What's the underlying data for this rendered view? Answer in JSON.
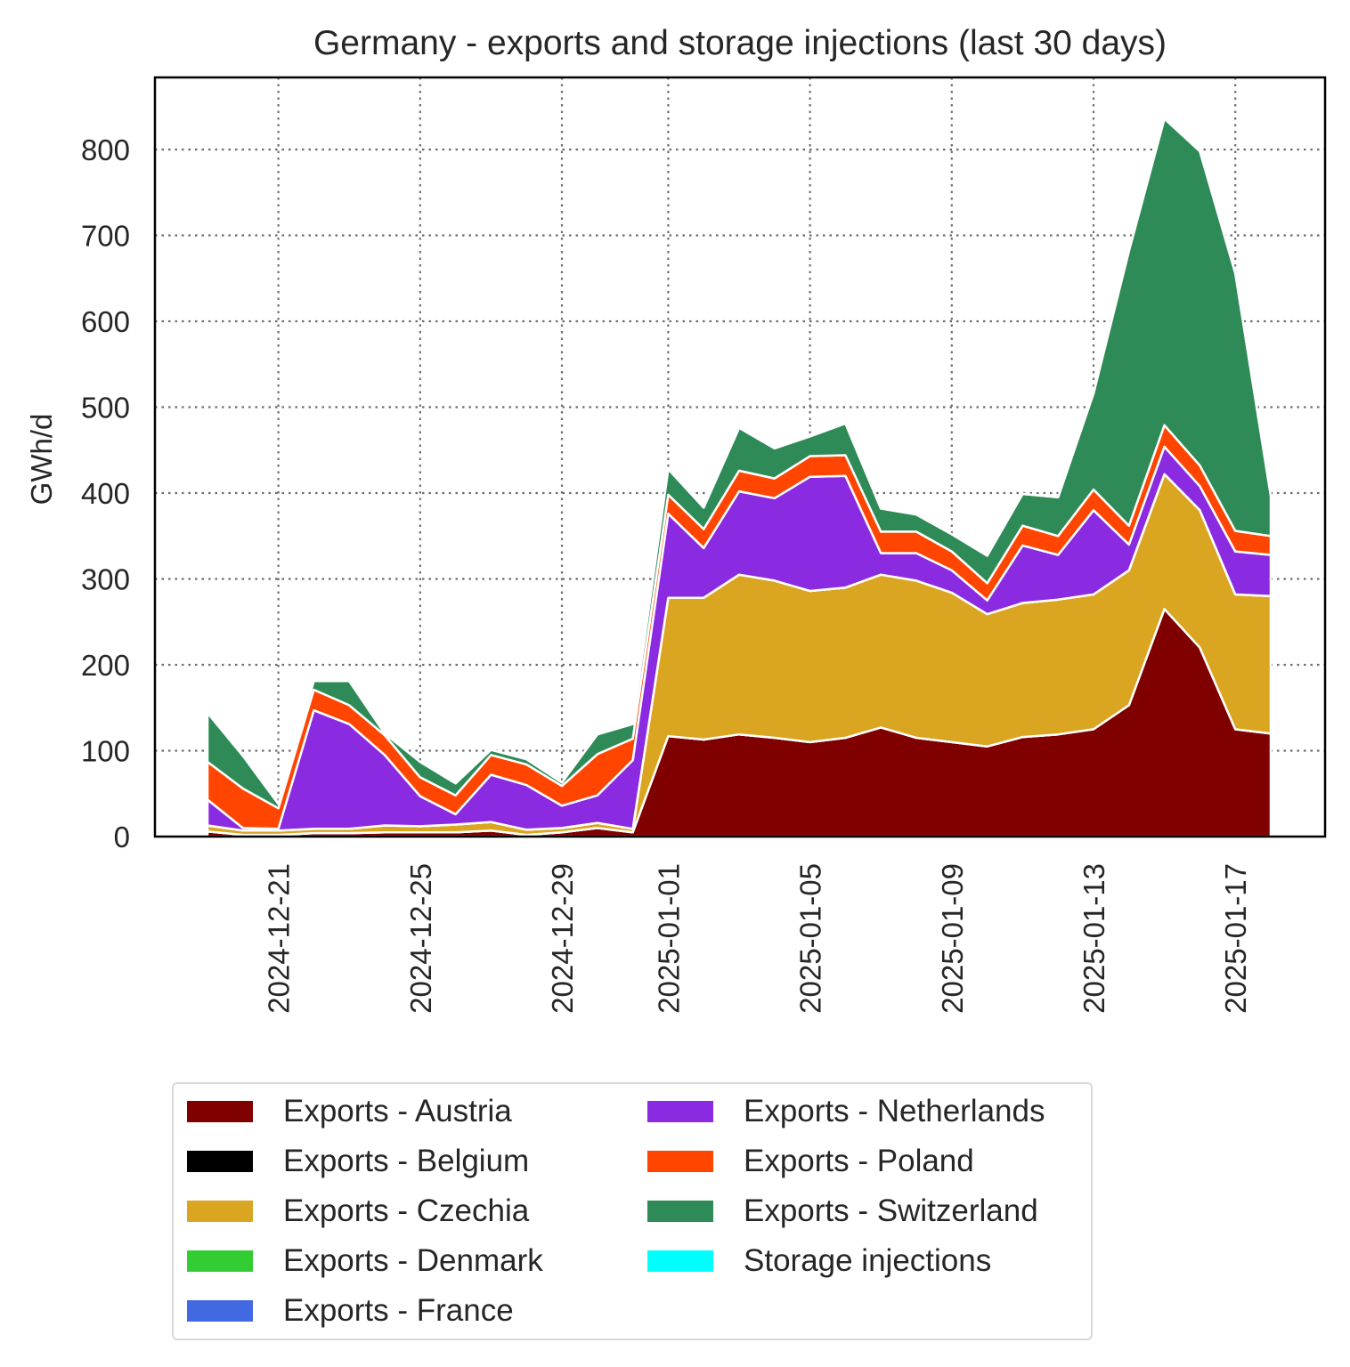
{
  "chart_data": {
    "type": "area",
    "stacked": true,
    "title": "Germany - exports and storage injections (last 30 days)",
    "xlabel": "",
    "ylabel": "GWh/d",
    "ylim": [
      0,
      890
    ],
    "yticks": [
      0,
      100,
      200,
      300,
      400,
      500,
      600,
      700,
      800
    ],
    "grid": true,
    "legend_position": "bottom",
    "x": [
      "2024-12-19",
      "2024-12-20",
      "2024-12-21",
      "2024-12-22",
      "2024-12-23",
      "2024-12-24",
      "2024-12-25",
      "2024-12-26",
      "2024-12-27",
      "2024-12-28",
      "2024-12-29",
      "2024-12-30",
      "2024-12-31",
      "2025-01-01",
      "2025-01-02",
      "2025-01-03",
      "2025-01-04",
      "2025-01-05",
      "2025-01-06",
      "2025-01-07",
      "2025-01-08",
      "2025-01-09",
      "2025-01-10",
      "2025-01-11",
      "2025-01-12",
      "2025-01-13",
      "2025-01-14",
      "2025-01-15",
      "2025-01-16",
      "2025-01-17",
      "2025-01-18"
    ],
    "xticks": [
      "2024-12-21",
      "2024-12-25",
      "2024-12-29",
      "2025-01-01",
      "2025-01-05",
      "2025-01-09",
      "2025-01-13",
      "2025-01-17"
    ],
    "series": [
      {
        "name": "Exports - Austria",
        "color": "#800000",
        "values": [
          6,
          2,
          2,
          4,
          4,
          5,
          5,
          5,
          7,
          2,
          5,
          10,
          5,
          117,
          113,
          119,
          115,
          110,
          115,
          127,
          115,
          110,
          105,
          116,
          119,
          125,
          153,
          265,
          220,
          125,
          120
        ]
      },
      {
        "name": "Exports - Belgium",
        "color": "#000000",
        "values": [
          0,
          0,
          0,
          0,
          0,
          0,
          0,
          0,
          0,
          0,
          0,
          0,
          0,
          0,
          0,
          0,
          0,
          0,
          0,
          0,
          0,
          0,
          0,
          0,
          0,
          0,
          0,
          0,
          0,
          0,
          0
        ]
      },
      {
        "name": "Exports - Czechia",
        "color": "#DAA520",
        "values": [
          7,
          5,
          5,
          5,
          5,
          8,
          7,
          9,
          10,
          6,
          5,
          6,
          4,
          161,
          165,
          186,
          183,
          176,
          175,
          178,
          183,
          174,
          154,
          156,
          157,
          157,
          157,
          157,
          160,
          157,
          160
        ]
      },
      {
        "name": "Exports - Denmark",
        "color": "#32CD32",
        "values": [
          0,
          0,
          0,
          0,
          0,
          0,
          0,
          0,
          0,
          0,
          0,
          0,
          0,
          0,
          0,
          0,
          0,
          0,
          0,
          0,
          0,
          0,
          0,
          0,
          0,
          0,
          0,
          0,
          0,
          0,
          0
        ]
      },
      {
        "name": "Exports - France",
        "color": "#4169E1",
        "values": [
          0,
          0,
          0,
          0,
          0,
          0,
          0,
          0,
          0,
          0,
          0,
          0,
          0,
          0,
          0,
          0,
          0,
          0,
          0,
          0,
          0,
          0,
          0,
          0,
          0,
          0,
          0,
          0,
          0,
          0,
          0
        ]
      },
      {
        "name": "Exports - Netherlands",
        "color": "#8A2BE2",
        "values": [
          30,
          3,
          2,
          138,
          122,
          82,
          35,
          12,
          55,
          52,
          26,
          32,
          80,
          98,
          58,
          97,
          96,
          133,
          130,
          25,
          32,
          26,
          16,
          67,
          52,
          98,
          30,
          32,
          28,
          50,
          48
        ]
      },
      {
        "name": "Exports - Poland",
        "color": "#FF4500",
        "values": [
          44,
          46,
          24,
          24,
          22,
          23,
          22,
          22,
          23,
          24,
          23,
          48,
          25,
          22,
          22,
          24,
          23,
          24,
          24,
          25,
          25,
          22,
          20,
          23,
          22,
          24,
          22,
          25,
          24,
          24,
          22
        ]
      },
      {
        "name": "Exports - Switzerland",
        "color": "#2E8B57",
        "values": [
          57,
          38,
          5,
          10,
          28,
          2,
          18,
          14,
          6,
          6,
          4,
          23,
          17,
          30,
          25,
          50,
          35,
          23,
          37,
          27,
          20,
          20,
          32,
          37,
          45,
          112,
          320,
          357,
          366,
          300,
          47
        ]
      },
      {
        "name": "Storage injections",
        "color": "#00FFFF",
        "values": [
          0,
          0,
          0,
          0,
          0,
          0,
          0,
          0,
          0,
          0,
          0,
          0,
          0,
          0,
          0,
          0,
          0,
          0,
          0,
          0,
          0,
          0,
          0,
          0,
          0,
          0,
          0,
          0,
          0,
          0,
          0
        ]
      }
    ]
  }
}
